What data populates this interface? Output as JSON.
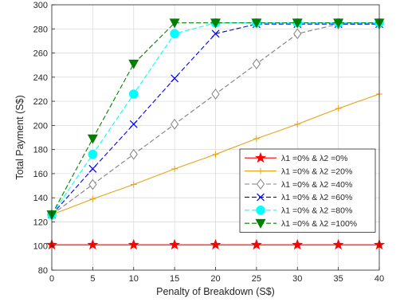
{
  "chart_data": {
    "type": "line",
    "title": "",
    "xlabel": "Penalty of Breakdown (S$)",
    "ylabel": "Total Payment (S$)",
    "xlim": [
      0,
      40
    ],
    "ylim": [
      80,
      300
    ],
    "xticks": [
      0,
      5,
      10,
      15,
      20,
      25,
      30,
      35,
      40
    ],
    "yticks": [
      80,
      100,
      120,
      140,
      160,
      180,
      200,
      220,
      240,
      260,
      280,
      300
    ],
    "grid": true,
    "legend_position": "lower-right",
    "x": [
      0,
      5,
      10,
      15,
      20,
      25,
      30,
      35,
      40
    ],
    "series": [
      {
        "name": "λ1 =0%  &  λ2 =0%",
        "color": "#ff0000",
        "dash": "solid",
        "marker": "star",
        "values": [
          101,
          101,
          101,
          101,
          101,
          101,
          101,
          101,
          101
        ]
      },
      {
        "name": "λ1 =0%  &  λ2 =20%",
        "color": "#e8a317",
        "dash": "solid",
        "marker": "plus",
        "values": [
          126,
          139,
          151,
          164,
          176,
          189,
          201,
          214,
          226
        ]
      },
      {
        "name": "λ1 =0%  &  λ2 =40%",
        "color": "#808080",
        "dash": "dashed",
        "marker": "diamond-open",
        "values": [
          126,
          151,
          176,
          201,
          226,
          251,
          276,
          284,
          284
        ]
      },
      {
        "name": "λ1 =0%  &  λ2 =60%",
        "color": "#0000ff",
        "dash": "dashed",
        "marker": "x",
        "values": [
          126,
          164,
          201,
          239,
          276,
          284,
          284,
          284,
          284
        ]
      },
      {
        "name": "λ1 =0%  &  λ2 =80%",
        "color": "#00ffff",
        "dash": "dashed",
        "marker": "circle",
        "values": [
          126,
          176,
          226,
          276,
          285,
          285,
          285,
          285,
          285
        ]
      },
      {
        "name": "λ1 =0%  &  λ2 =100%",
        "color": "#008000",
        "dash": "dashed",
        "marker": "triangle-down",
        "values": [
          126,
          189,
          251,
          285,
          285,
          285,
          285,
          285,
          285
        ]
      }
    ]
  }
}
